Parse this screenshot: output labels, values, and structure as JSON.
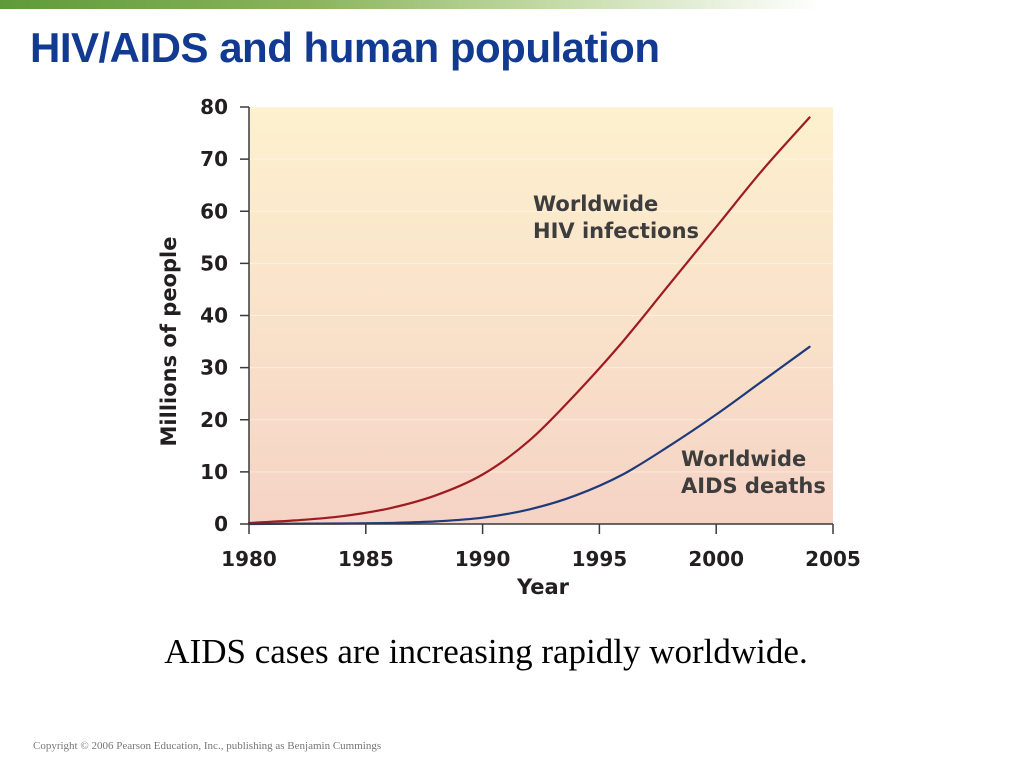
{
  "slide": {
    "title": "HIV/AIDS and human population",
    "caption": "AIDS cases are increasing rapidly worldwide.",
    "copyright": "Copyright © 2006 Pearson Education, Inc., publishing as Benjamin Cummings"
  },
  "colors": {
    "title": "#123a90",
    "hiv_line": "#9e1b20",
    "aids_line": "#1f3a7a",
    "plot_bg_top": "#fdf1cf",
    "plot_bg_bottom": "#f5d3c5",
    "top_bar": "#5f9a3a"
  },
  "chart_data": {
    "type": "line",
    "xlabel": "Year",
    "ylabel": "Millions of people",
    "xlim": [
      1980,
      2005
    ],
    "ylim": [
      0,
      80
    ],
    "x_ticks": [
      "1980",
      "1985",
      "1990",
      "1995",
      "2000",
      "2005"
    ],
    "y_ticks": [
      "0",
      "10",
      "20",
      "30",
      "40",
      "50",
      "60",
      "70",
      "80"
    ],
    "grid": true,
    "series": [
      {
        "name": "Worldwide HIV infections",
        "x": [
          1980,
          1982,
          1984,
          1986,
          1988,
          1990,
          1992,
          1994,
          1996,
          1998,
          2000,
          2002,
          2004
        ],
        "y": [
          0.2,
          0.7,
          1.5,
          3,
          5.5,
          9.5,
          16,
          25,
          35,
          46,
          57,
          68,
          78
        ]
      },
      {
        "name": "Worldwide AIDS deaths",
        "x": [
          1980,
          1982,
          1984,
          1986,
          1988,
          1990,
          1992,
          1994,
          1996,
          1998,
          2000,
          2002,
          2004
        ],
        "y": [
          0,
          0.05,
          0.1,
          0.2,
          0.5,
          1.2,
          2.8,
          5.5,
          9.5,
          15,
          21,
          27.5,
          34
        ]
      }
    ],
    "annotations": [
      {
        "series": 0,
        "lines": [
          "Worldwide",
          "HIV infections"
        ]
      },
      {
        "series": 1,
        "lines": [
          "Worldwide",
          "AIDS deaths"
        ]
      }
    ]
  }
}
